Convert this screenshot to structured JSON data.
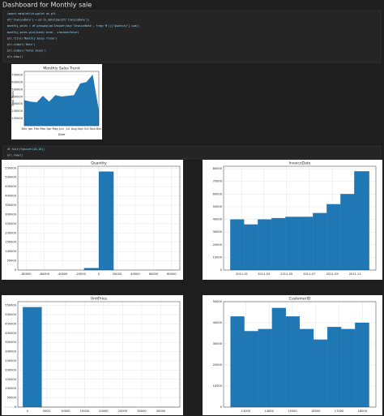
{
  "title": "Dashboard for Monthly sale",
  "code_cells": [
    {
      "lines": [
        "import matplotlib.pyplot as plt",
        "df['InvoiceDate'] = pd.to_datetime(df['InvoiceDate'])",
        "monthly_sales = df.groupby(pd.Grouper(key='InvoiceDate', freq='M'))['Quantity'].sum()",
        "monthly_sales.plot(kind='area', stacked=False)",
        "plt.title('Monthly Sales Trend')",
        "plt.xlabel('Date')",
        "plt.ylabel('Total Sales')",
        "plt.show()"
      ]
    },
    {
      "lines": [
        "df.hist(figsize=(10,10))",
        "plt.show()"
      ]
    }
  ],
  "chart_data": [
    {
      "type": "area",
      "title": "Monthly Sales Trend",
      "xlabel": "Date",
      "ylabel": "Total Sales",
      "color": "#1f77b4",
      "categories": [
        "Dec",
        "Jan",
        "Feb",
        "Mar",
        "Apr",
        "May",
        "Jun",
        "Jul",
        "Aug",
        "Sep",
        "Oct",
        "Nov",
        "Dec"
      ],
      "values": [
        350000,
        330000,
        320000,
        410000,
        330000,
        420000,
        400000,
        410000,
        420000,
        580000,
        600000,
        700000,
        200000
      ],
      "ylim": [
        0,
        750000
      ],
      "yticks": [
        100000,
        200000,
        300000,
        400000,
        500000,
        600000,
        700000
      ],
      "grid": true
    },
    {
      "type": "histogram",
      "title": "Quantity",
      "color": "#1f77b4",
      "bins": [
        -80995,
        -64796,
        -48597,
        -32398,
        -16199,
        0,
        16199,
        32398,
        48597,
        64796,
        80995
      ],
      "counts": [
        1,
        0,
        0,
        0,
        10624,
        531284,
        0,
        0,
        0,
        1
      ],
      "xlim": [
        -89095,
        89095
      ],
      "xticks": [
        -80000,
        -60000,
        -40000,
        -20000,
        0,
        20000,
        40000,
        60000,
        80000
      ],
      "ylim": [
        0,
        560000
      ],
      "yticks": [
        0,
        50000,
        100000,
        150000,
        200000,
        250000,
        300000,
        350000,
        400000,
        450000,
        500000,
        550000
      ],
      "grid": true
    },
    {
      "type": "histogram",
      "title": "InvoiceDate",
      "color": "#1f77b4",
      "bins": [
        "2010-12-01",
        "2011-01-07",
        "2011-02-13",
        "2011-03-22",
        "2011-04-28",
        "2011-06-04",
        "2011-07-11",
        "2011-08-17",
        "2011-09-23",
        "2011-10-30",
        "2011-12-09"
      ],
      "counts": [
        40000,
        36000,
        40000,
        41000,
        42000,
        42000,
        45000,
        52000,
        60000,
        78000
      ],
      "xlim": [
        "2010-11-13",
        "2011-12-27"
      ],
      "xticks": [
        "2011-01",
        "2011-03",
        "2011-05",
        "2011-07",
        "2011-09",
        "2011-11"
      ],
      "ylim": [
        0,
        82000
      ],
      "yticks": [
        0,
        10000,
        20000,
        30000,
        40000,
        50000,
        60000,
        70000,
        80000
      ],
      "grid": true
    },
    {
      "type": "histogram",
      "title": "UnitPrice",
      "color": "#1f77b4",
      "bins": [
        -11062,
        -6120,
        -1178,
        3764,
        8706,
        13648,
        18590,
        23532,
        28474,
        33416,
        38970
      ],
      "counts": [
        0,
        2,
        540000,
        40,
        10,
        5,
        2,
        1,
        0,
        1
      ],
      "xlim": [
        -2500,
        40000
      ],
      "xticks": [
        0,
        5000,
        10000,
        15000,
        20000,
        25000,
        30000,
        35000
      ],
      "ylim": [
        0,
        570000
      ],
      "yticks": [
        0,
        50000,
        100000,
        150000,
        200000,
        250000,
        300000,
        350000,
        400000,
        450000,
        500000,
        550000
      ],
      "grid": true
    },
    {
      "type": "histogram",
      "title": "CustomerID",
      "color": "#1f77b4",
      "bins": [
        12346,
        12939,
        13533,
        14126,
        14720,
        15313,
        15907,
        16500,
        17094,
        17687,
        18287
      ],
      "counts": [
        43000,
        36000,
        37000,
        47000,
        43000,
        37000,
        32000,
        38000,
        37000,
        40000
      ],
      "xlim": [
        12050,
        18580
      ],
      "xticks": [
        13000,
        14000,
        15000,
        16000,
        17000,
        18000
      ],
      "ylim": [
        0,
        50000
      ],
      "yticks": [
        0,
        10000,
        20000,
        30000,
        40000,
        50000
      ],
      "grid": true
    }
  ]
}
